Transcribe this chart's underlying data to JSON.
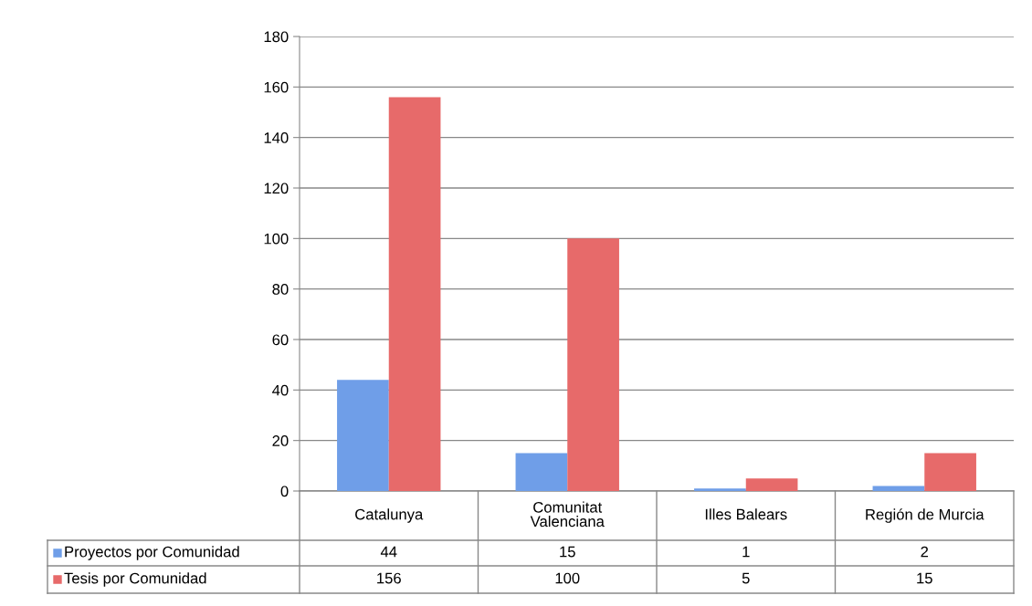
{
  "chart_data": {
    "type": "bar",
    "categories": [
      "Catalunya",
      "Comunitat\nValenciana",
      "Illes Balears",
      "Región de Murcia"
    ],
    "series": [
      {
        "name": "Proyectos por Comunidad",
        "color": "#6f9ee8",
        "values": [
          44,
          15,
          1,
          2
        ]
      },
      {
        "name": "Tesis por Comunidad",
        "color": "#e76a6a",
        "values": [
          156,
          100,
          5,
          15
        ]
      }
    ],
    "ylim": [
      0,
      180
    ],
    "yticks": [
      0,
      20,
      40,
      60,
      80,
      100,
      120,
      140,
      160,
      180
    ],
    "grid": "y",
    "legend": "bottom",
    "data_labels": true
  }
}
